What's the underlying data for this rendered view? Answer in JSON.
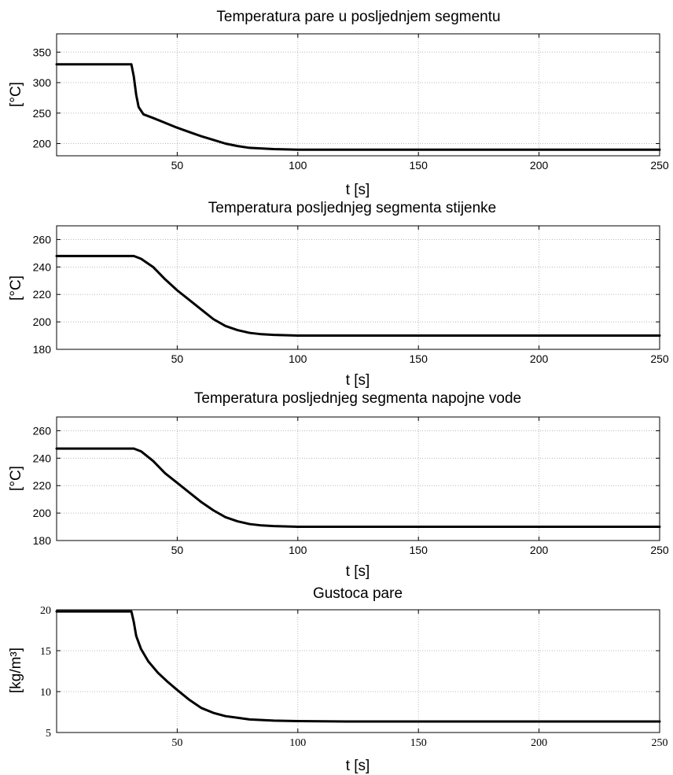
{
  "chart_data": [
    {
      "type": "line",
      "title": "Temperatura pare u posljednjem segmentu",
      "xlabel": "t [s]",
      "ylabel": "[°C]",
      "xlim": [
        0,
        250
      ],
      "ylim": [
        180,
        380
      ],
      "xticks": [
        50,
        100,
        150,
        200,
        250
      ],
      "yticks": [
        200,
        250,
        300,
        350
      ],
      "grid": true,
      "series": [
        {
          "x": [
            0,
            31,
            32,
            33,
            34,
            36,
            40,
            45,
            50,
            55,
            60,
            65,
            70,
            75,
            80,
            90,
            100,
            120,
            150,
            200,
            250
          ],
          "y": [
            330,
            330,
            310,
            280,
            260,
            248,
            242,
            234,
            226,
            219,
            212,
            206,
            200,
            196,
            193,
            191,
            190,
            190,
            190,
            190,
            190
          ]
        }
      ]
    },
    {
      "type": "line",
      "title": "Temperatura posljednjeg segmenta stijenke",
      "xlabel": "t [s]",
      "ylabel": "[°C]",
      "xlim": [
        0,
        250
      ],
      "ylim": [
        180,
        270
      ],
      "xticks": [
        50,
        100,
        150,
        200,
        250
      ],
      "yticks": [
        180,
        200,
        220,
        240,
        260
      ],
      "grid": true,
      "series": [
        {
          "x": [
            0,
            32,
            35,
            40,
            45,
            50,
            55,
            60,
            65,
            70,
            75,
            80,
            85,
            90,
            100,
            110,
            130,
            150,
            200,
            250
          ],
          "y": [
            248,
            248,
            246,
            240,
            231,
            223,
            216,
            209,
            202,
            197,
            194,
            192,
            191,
            190.5,
            190,
            190,
            190,
            190,
            190,
            190
          ]
        }
      ]
    },
    {
      "type": "line",
      "title": "Temperatura posljednjeg segmenta napojne vode",
      "xlabel": "t [s]",
      "ylabel": "[°C]",
      "xlim": [
        0,
        250
      ],
      "ylim": [
        180,
        270
      ],
      "xticks": [
        50,
        100,
        150,
        200,
        250
      ],
      "yticks": [
        180,
        200,
        220,
        240,
        260
      ],
      "grid": true,
      "series": [
        {
          "x": [
            0,
            32,
            35,
            40,
            45,
            50,
            55,
            60,
            65,
            70,
            75,
            80,
            85,
            90,
            100,
            110,
            130,
            150,
            200,
            250
          ],
          "y": [
            247,
            247,
            245,
            238,
            229,
            222,
            215,
            208,
            202,
            197,
            194,
            192,
            191,
            190.5,
            190,
            190,
            190,
            190,
            190,
            190
          ]
        }
      ]
    },
    {
      "type": "line",
      "title": "Gustoca pare",
      "xlabel": "t [s]",
      "ylabel": "[kg/m³]",
      "xlim": [
        0,
        250
      ],
      "ylim": [
        5,
        20
      ],
      "xticks": [
        50,
        100,
        150,
        200,
        250
      ],
      "yticks": [
        5,
        10,
        15,
        20
      ],
      "grid": true,
      "series": [
        {
          "x": [
            0,
            31,
            32,
            33,
            35,
            38,
            42,
            46,
            50,
            55,
            60,
            65,
            70,
            75,
            80,
            90,
            100,
            120,
            150,
            200,
            250
          ],
          "y": [
            19.8,
            19.8,
            18.5,
            16.8,
            15.2,
            13.7,
            12.3,
            11.2,
            10.2,
            9.0,
            8.0,
            7.4,
            7.0,
            6.8,
            6.6,
            6.45,
            6.4,
            6.35,
            6.35,
            6.35,
            6.35
          ]
        }
      ]
    }
  ]
}
